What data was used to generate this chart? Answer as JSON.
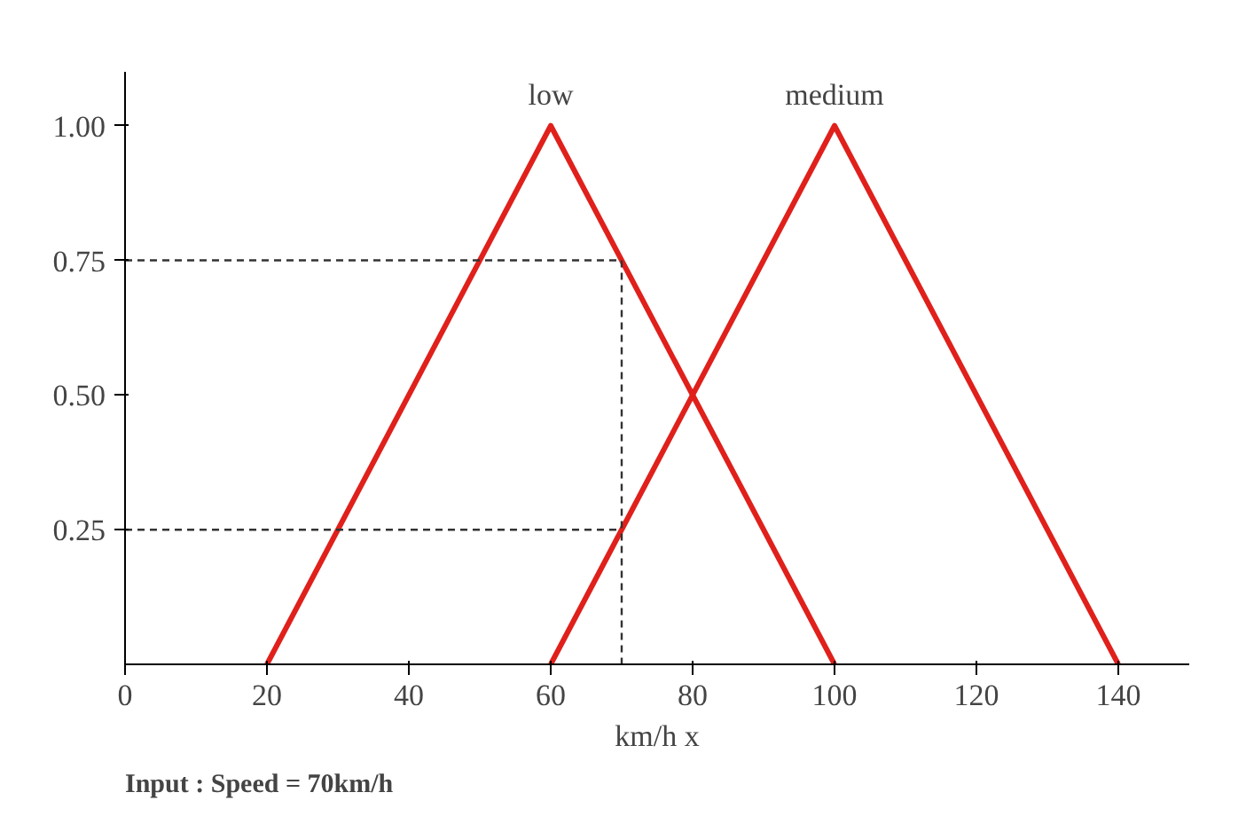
{
  "chart_data": {
    "type": "line",
    "xlabel": "km/h x",
    "xlim": [
      0,
      150
    ],
    "ylim": [
      0,
      1.1
    ],
    "xticks": [
      0,
      20,
      40,
      60,
      80,
      100,
      120,
      140
    ],
    "yticks": [
      {
        "value": 0.25,
        "label": "0.25"
      },
      {
        "value": 0.5,
        "label": "0.50"
      },
      {
        "value": 0.75,
        "label": "0.75"
      },
      {
        "value": 1,
        "label": "1.00"
      }
    ],
    "series": [
      {
        "name": "low",
        "color": "#e0201b",
        "x": [
          20,
          60,
          100
        ],
        "values": [
          0,
          1,
          0
        ]
      },
      {
        "name": "medium",
        "color": "#e0201b",
        "x": [
          60,
          100,
          140
        ],
        "values": [
          0,
          1,
          0
        ]
      },
      {
        "color": "#333333",
        "x": [
          0,
          70,
          70
        ],
        "values": [
          0.75,
          0.75,
          0
        ],
        "line_style": "dashed"
      },
      {
        "color": "#333333",
        "x": [
          0,
          70
        ],
        "values": [
          0.25,
          0.25
        ],
        "line_style": "dashed"
      }
    ],
    "grid": false,
    "marker": "none",
    "line_style": "solid",
    "annotations": [
      "Input : Speed = 70km/h"
    ]
  }
}
